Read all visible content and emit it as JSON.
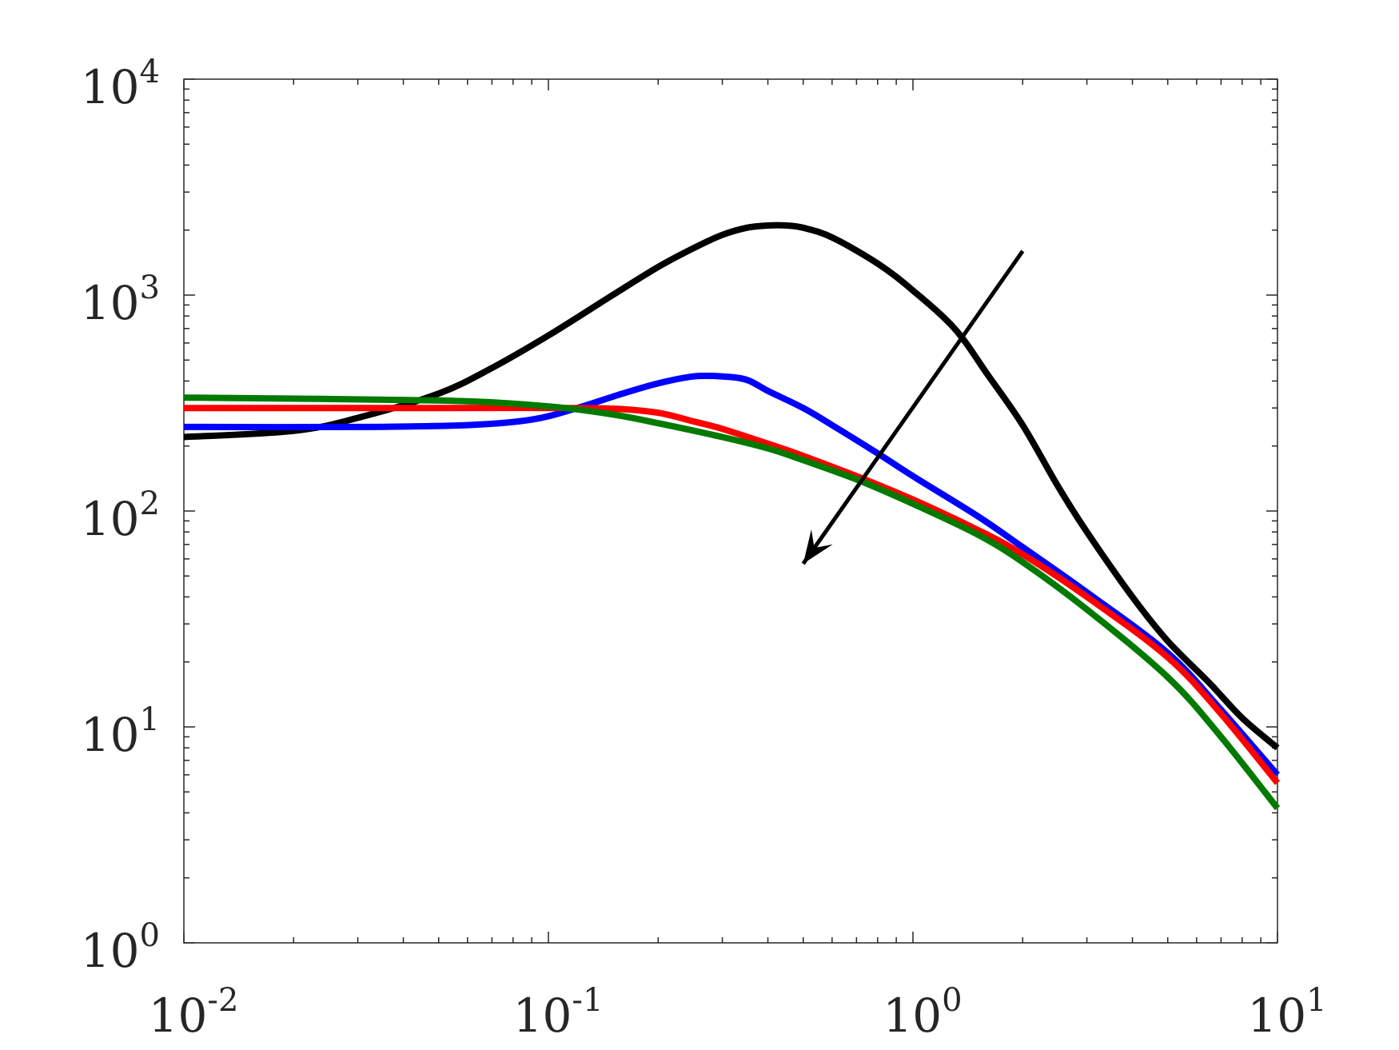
{
  "chart_data": {
    "type": "line",
    "xscale": "log",
    "yscale": "log",
    "xlim": [
      0.01,
      10
    ],
    "ylim": [
      1,
      10000
    ],
    "grid": false,
    "title": "",
    "xlabel": "",
    "ylabel": "",
    "x_ticks": [
      {
        "value": 0.01,
        "base": "10",
        "exp": "-2"
      },
      {
        "value": 0.1,
        "base": "10",
        "exp": "-1"
      },
      {
        "value": 1,
        "base": "10",
        "exp": "0"
      },
      {
        "value": 10,
        "base": "10",
        "exp": "1"
      }
    ],
    "y_ticks": [
      {
        "value": 1,
        "base": "10",
        "exp": "0"
      },
      {
        "value": 10,
        "base": "10",
        "exp": "1"
      },
      {
        "value": 100,
        "base": "10",
        "exp": "2"
      },
      {
        "value": 1000,
        "base": "10",
        "exp": "3"
      },
      {
        "value": 10000,
        "base": "10",
        "exp": "4"
      }
    ],
    "series": [
      {
        "color": "#000000",
        "points": [
          [
            0.01,
            220
          ],
          [
            0.02,
            235
          ],
          [
            0.03,
            270
          ],
          [
            0.05,
            350
          ],
          [
            0.07,
            460
          ],
          [
            0.1,
            650
          ],
          [
            0.15,
            1000
          ],
          [
            0.2,
            1350
          ],
          [
            0.25,
            1650
          ],
          [
            0.3,
            1900
          ],
          [
            0.35,
            2050
          ],
          [
            0.4,
            2100
          ],
          [
            0.45,
            2100
          ],
          [
            0.5,
            2050
          ],
          [
            0.6,
            1850
          ],
          [
            0.8,
            1400
          ],
          [
            1.0,
            1050
          ],
          [
            1.3,
            700
          ],
          [
            1.6,
            430
          ],
          [
            2.0,
            250
          ],
          [
            2.5,
            130
          ],
          [
            3.0,
            80
          ],
          [
            4.0,
            40
          ],
          [
            5.0,
            25
          ],
          [
            6.5,
            16
          ],
          [
            8.0,
            11
          ],
          [
            10,
            8
          ]
        ]
      },
      {
        "color": "#0000ff",
        "points": [
          [
            0.01,
            245
          ],
          [
            0.03,
            245
          ],
          [
            0.06,
            250
          ],
          [
            0.09,
            265
          ],
          [
            0.12,
            300
          ],
          [
            0.16,
            350
          ],
          [
            0.2,
            390
          ],
          [
            0.25,
            420
          ],
          [
            0.3,
            420
          ],
          [
            0.35,
            405
          ],
          [
            0.4,
            360
          ],
          [
            0.5,
            300
          ],
          [
            0.6,
            250
          ],
          [
            0.8,
            185
          ],
          [
            1.0,
            145
          ],
          [
            1.5,
            95
          ],
          [
            2.0,
            68
          ],
          [
            3.0,
            42
          ],
          [
            5.0,
            22
          ],
          [
            7.0,
            12
          ],
          [
            10,
            6
          ]
        ]
      },
      {
        "color": "#ff0000",
        "points": [
          [
            0.01,
            300
          ],
          [
            0.05,
            300
          ],
          [
            0.1,
            300
          ],
          [
            0.15,
            298
          ],
          [
            0.2,
            285
          ],
          [
            0.25,
            260
          ],
          [
            0.3,
            240
          ],
          [
            0.4,
            205
          ],
          [
            0.5,
            180
          ],
          [
            0.7,
            145
          ],
          [
            1.0,
            113
          ],
          [
            1.5,
            82
          ],
          [
            2.0,
            63
          ],
          [
            3.0,
            40
          ],
          [
            5.0,
            21
          ],
          [
            7.0,
            11.5
          ],
          [
            10,
            5.5
          ]
        ]
      },
      {
        "color": "#007a00",
        "points": [
          [
            0.01,
            335
          ],
          [
            0.05,
            325
          ],
          [
            0.1,
            305
          ],
          [
            0.15,
            280
          ],
          [
            0.2,
            255
          ],
          [
            0.3,
            220
          ],
          [
            0.4,
            195
          ],
          [
            0.5,
            172
          ],
          [
            0.7,
            140
          ],
          [
            1.0,
            108
          ],
          [
            1.5,
            78
          ],
          [
            2.0,
            58
          ],
          [
            3.0,
            35
          ],
          [
            5.0,
            17
          ],
          [
            7.0,
            9
          ],
          [
            10,
            4.2
          ]
        ]
      }
    ],
    "annotation_arrow": {
      "from": [
        2.0,
        1600
      ],
      "to": [
        0.5,
        57
      ]
    }
  }
}
